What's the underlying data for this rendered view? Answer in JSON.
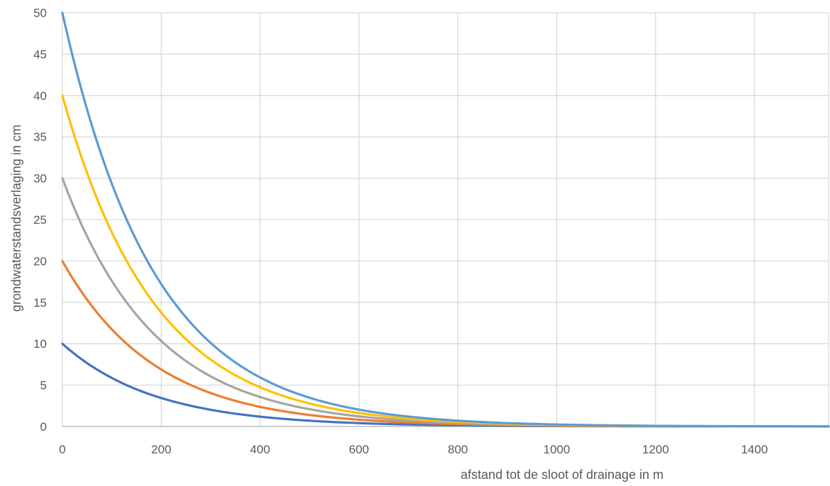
{
  "chart_data": {
    "type": "line",
    "title": "",
    "xlabel": "afstand tot de sloot of drainage in m",
    "ylabel": "grondwaterstandsverlaging in cm",
    "xlim": [
      0,
      1550
    ],
    "ylim": [
      0,
      50
    ],
    "xticks": [
      0,
      200,
      400,
      600,
      800,
      1000,
      1200,
      1400
    ],
    "yticks": [
      0,
      5,
      10,
      15,
      20,
      25,
      30,
      35,
      40,
      45,
      50
    ],
    "grid": true,
    "legend": "none",
    "x": [
      0,
      50,
      100,
      150,
      200,
      250,
      300,
      350,
      400,
      450,
      500,
      550,
      600,
      650,
      700,
      750,
      800,
      850,
      900,
      950,
      1000,
      1050,
      1100,
      1150,
      1200,
      1250,
      1300,
      1350,
      1400,
      1450,
      1500,
      1550
    ],
    "series": [
      {
        "color": "#4472C4",
        "values": [
          10.0,
          7.66,
          5.87,
          4.49,
          3.44,
          2.64,
          2.02,
          1.55,
          1.19,
          0.91,
          0.7,
          0.53,
          0.41,
          0.31,
          0.24,
          0.18,
          0.14,
          0.11,
          0.08,
          0.06,
          0.05,
          0.04,
          0.03,
          0.02,
          0.02,
          0.01,
          0.01,
          0.01,
          0.01,
          0.01,
          0.0,
          0.0
        ]
      },
      {
        "color": "#ED7D31",
        "values": [
          20.0,
          15.32,
          11.74,
          8.99,
          6.89,
          5.28,
          4.04,
          3.1,
          2.37,
          1.82,
          1.39,
          1.07,
          0.82,
          0.63,
          0.48,
          0.37,
          0.28,
          0.22,
          0.17,
          0.13,
          0.1,
          0.07,
          0.06,
          0.04,
          0.03,
          0.03,
          0.02,
          0.01,
          0.01,
          0.01,
          0.01,
          0.01
        ]
      },
      {
        "color": "#A5A5A5",
        "values": [
          30.0,
          22.98,
          17.6,
          13.48,
          10.33,
          7.91,
          6.06,
          4.64,
          3.56,
          2.72,
          2.09,
          1.6,
          1.22,
          0.94,
          0.72,
          0.55,
          0.42,
          0.32,
          0.25,
          0.19,
          0.15,
          0.11,
          0.09,
          0.07,
          0.05,
          0.04,
          0.03,
          0.02,
          0.02,
          0.01,
          0.01,
          0.01
        ]
      },
      {
        "color": "#FFC000",
        "values": [
          40.0,
          30.64,
          23.47,
          17.98,
          13.77,
          10.55,
          8.08,
          6.19,
          4.74,
          3.63,
          2.78,
          2.13,
          1.63,
          1.25,
          0.96,
          0.73,
          0.56,
          0.43,
          0.33,
          0.25,
          0.19,
          0.15,
          0.11,
          0.09,
          0.07,
          0.05,
          0.04,
          0.03,
          0.02,
          0.02,
          0.01,
          0.01
        ]
      },
      {
        "color": "#5B9BD5",
        "values": [
          50.0,
          38.3,
          29.34,
          22.47,
          17.21,
          13.19,
          10.1,
          7.74,
          5.93,
          4.54,
          3.48,
          2.66,
          2.04,
          1.56,
          1.2,
          0.92,
          0.7,
          0.54,
          0.41,
          0.32,
          0.24,
          0.19,
          0.14,
          0.11,
          0.08,
          0.06,
          0.05,
          0.04,
          0.03,
          0.02,
          0.02,
          0.01
        ]
      }
    ]
  }
}
